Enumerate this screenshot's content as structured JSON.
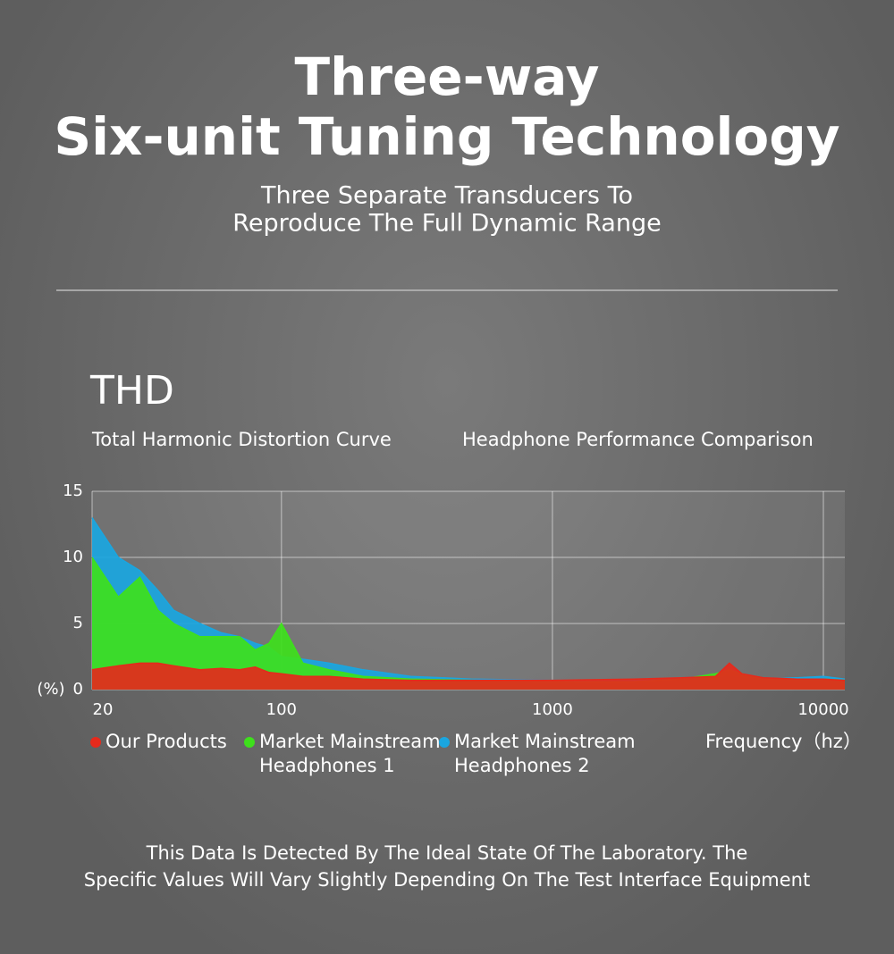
{
  "header": {
    "title_lines": [
      "Three-way",
      "Six-unit Tuning Technology"
    ],
    "subtitle_lines": [
      "Three Separate Transducers To",
      "Reproduce The Full Dynamic Range"
    ]
  },
  "chart_data": {
    "type": "area",
    "title": "THD",
    "subtitles": [
      "Total Harmonic Distortion Curve",
      "Headphone Performance Comparison"
    ],
    "x_label": "Frequency（hz）",
    "y_label": "(%)",
    "x_scale": "log",
    "grid": true,
    "x": [
      20,
      25,
      30,
      35,
      40,
      50,
      60,
      70,
      80,
      90,
      100,
      120,
      150,
      200,
      300,
      500,
      1000,
      2000,
      3000,
      4000,
      4500,
      5000,
      6000,
      8000,
      10000,
      12000
    ],
    "xlim": [
      20,
      12000
    ],
    "xticks": [
      20,
      100,
      1000,
      10000
    ],
    "ylim": [
      0,
      15
    ],
    "yticks": [
      0,
      5,
      10,
      15
    ],
    "series": [
      {
        "name": "Our Products",
        "color": "#e52a1c",
        "values": [
          1.5,
          1.8,
          2,
          2,
          1.8,
          1.5,
          1.6,
          1.5,
          1.7,
          1.3,
          1.2,
          1.0,
          1.0,
          0.8,
          0.7,
          0.7,
          0.7,
          0.8,
          0.9,
          1.0,
          2.0,
          1.2,
          0.9,
          0.8,
          0.8,
          0.7
        ]
      },
      {
        "name": "Market Mainstream Headphones 1",
        "color": "#3ee01c",
        "values": [
          10,
          7,
          8.5,
          6,
          5,
          4,
          4,
          4,
          3,
          3.5,
          5,
          2,
          1.5,
          1,
          0.8,
          0.7,
          0.6,
          0.6,
          0.8,
          1.2,
          1.5,
          1.2,
          0.8,
          0.8,
          0.8,
          0.7
        ]
      },
      {
        "name": "Market Mainstream Headphones 2",
        "color": "#1aa6e0",
        "values": [
          13,
          10,
          9,
          7.5,
          6,
          5,
          4.3,
          4,
          3.5,
          3.2,
          2.5,
          2.3,
          2,
          1.5,
          1,
          0.8,
          0.7,
          0.7,
          0.8,
          0.9,
          1.0,
          0.9,
          0.8,
          0.9,
          1.0,
          0.8
        ]
      }
    ]
  },
  "footer": {
    "note_lines": [
      "This Data Is Detected By The Ideal State Of The Laboratory. The",
      "Specific Values Will Vary Slightly Depending On The Test Interface Equipment"
    ]
  }
}
